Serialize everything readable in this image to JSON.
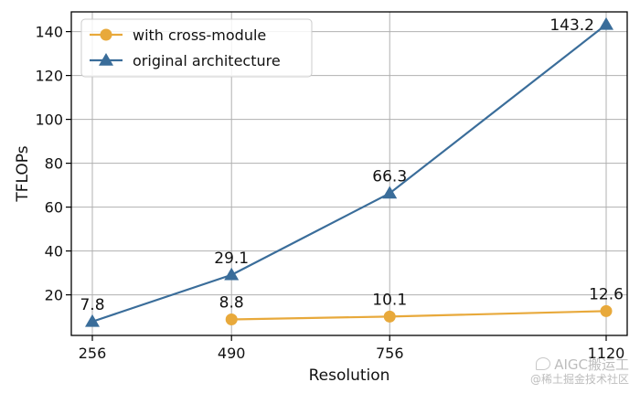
{
  "chart_data": {
    "type": "line",
    "xlabel": "Resolution",
    "ylabel": "TFLOPs",
    "categories": [
      "256",
      "490",
      "756",
      "1120"
    ],
    "x": [
      256,
      490,
      756,
      1120
    ],
    "yticks": [
      20,
      40,
      60,
      80,
      100,
      120,
      140
    ],
    "ylim": [
      1.5,
      149
    ],
    "grid": true,
    "legend_position": "top-left",
    "series": [
      {
        "name": "with cross-module",
        "color": "#E8A93B",
        "marker": "circle",
        "x": [
          490,
          756,
          1120
        ],
        "values": [
          8.8,
          10.1,
          12.6
        ],
        "labels": [
          "8.8",
          "10.1",
          "12.6"
        ]
      },
      {
        "name": "original architecture",
        "color": "#3A6D9A",
        "marker": "triangle",
        "x": [
          256,
          490,
          756,
          1120
        ],
        "values": [
          7.8,
          29.1,
          66.3,
          143.2
        ],
        "labels": [
          "7.8",
          "29.1",
          "66.3",
          "143.2"
        ]
      }
    ]
  },
  "watermark": {
    "line1": "AIGC搬运工",
    "line2": "@稀土掘金技术社区"
  }
}
